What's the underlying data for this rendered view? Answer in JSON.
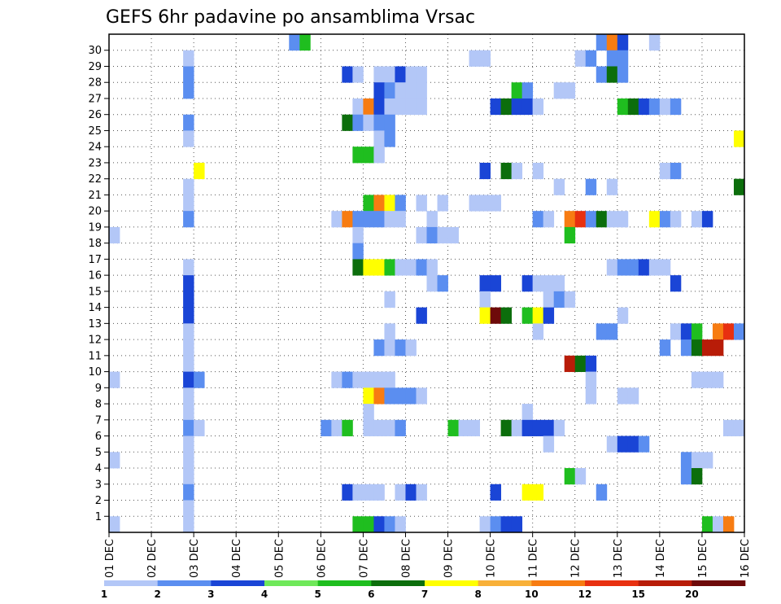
{
  "chart_data": {
    "type": "heatmap",
    "title": "GEFS 6hr padavine po ansamblima Vrsac",
    "xlabel": "",
    "ylabel": "",
    "x_ticks": [
      "01 DEC",
      "02 DEC",
      "03 DEC",
      "04 DEC",
      "05 DEC",
      "06 DEC",
      "07 DEC",
      "08 DEC",
      "09 DEC",
      "10 DEC",
      "11 DEC",
      "12 DEC",
      "13 DEC",
      "14 DEC",
      "15 DEC",
      "16 DEC"
    ],
    "y_ticks": [
      1,
      2,
      3,
      4,
      5,
      6,
      7,
      8,
      9,
      10,
      11,
      12,
      13,
      14,
      15,
      16,
      17,
      18,
      19,
      20,
      21,
      22,
      23,
      24,
      25,
      26,
      27,
      28,
      29,
      30
    ],
    "xlim": [
      0,
      60
    ],
    "ylim": [
      0,
      30
    ],
    "x_unit": "6-hour steps from 01 DEC 00Z",
    "y_unit": "ensemble member",
    "grid": true,
    "legend_position": "bottom",
    "legend": {
      "labels": [
        "1",
        "2",
        "3",
        "4",
        "5",
        "6",
        "7",
        "8",
        "10",
        "12",
        "15",
        "20"
      ],
      "colors": [
        "#b3c7f7",
        "#5b8ef0",
        "#1a45d6",
        "#6fe85a",
        "#1fbe1f",
        "#0c6e0c",
        "#ffff00",
        "#f8b038",
        "#f77c12",
        "#e83010",
        "#b81c08",
        "#6e0a0a"
      ]
    },
    "cells": [
      {
        "x": 17,
        "y": 30,
        "v": 2
      },
      {
        "x": 18,
        "y": 30,
        "v": 5
      },
      {
        "x": 46,
        "y": 30,
        "v": 2
      },
      {
        "x": 47,
        "y": 30,
        "v": 10
      },
      {
        "x": 48,
        "y": 30,
        "v": 3
      },
      {
        "x": 51,
        "y": 30,
        "v": 1
      },
      {
        "x": 7,
        "y": 29,
        "v": 1
      },
      {
        "x": 34,
        "y": 29,
        "v": 1
      },
      {
        "x": 35,
        "y": 29,
        "v": 1
      },
      {
        "x": 44,
        "y": 29,
        "v": 1
      },
      {
        "x": 45,
        "y": 29,
        "v": 2
      },
      {
        "x": 47,
        "y": 29,
        "v": 2
      },
      {
        "x": 48,
        "y": 29,
        "v": 2
      },
      {
        "x": 7,
        "y": 28,
        "v": 2
      },
      {
        "x": 22,
        "y": 28,
        "v": 3
      },
      {
        "x": 23,
        "y": 28,
        "v": 1
      },
      {
        "x": 25,
        "y": 28,
        "v": 1
      },
      {
        "x": 26,
        "y": 28,
        "v": 1
      },
      {
        "x": 27,
        "y": 28,
        "v": 3
      },
      {
        "x": 28,
        "y": 28,
        "v": 1
      },
      {
        "x": 29,
        "y": 28,
        "v": 1
      },
      {
        "x": 46,
        "y": 28,
        "v": 2
      },
      {
        "x": 47,
        "y": 28,
        "v": 6
      },
      {
        "x": 48,
        "y": 28,
        "v": 2
      },
      {
        "x": 7,
        "y": 27,
        "v": 2
      },
      {
        "x": 25,
        "y": 27,
        "v": 3
      },
      {
        "x": 26,
        "y": 27,
        "v": 2
      },
      {
        "x": 27,
        "y": 27,
        "v": 1
      },
      {
        "x": 28,
        "y": 27,
        "v": 1
      },
      {
        "x": 29,
        "y": 27,
        "v": 1
      },
      {
        "x": 38,
        "y": 27,
        "v": 5
      },
      {
        "x": 39,
        "y": 27,
        "v": 2
      },
      {
        "x": 42,
        "y": 27,
        "v": 1
      },
      {
        "x": 43,
        "y": 27,
        "v": 1
      },
      {
        "x": 23,
        "y": 26,
        "v": 1
      },
      {
        "x": 24,
        "y": 26,
        "v": 10
      },
      {
        "x": 25,
        "y": 26,
        "v": 3
      },
      {
        "x": 26,
        "y": 26,
        "v": 1
      },
      {
        "x": 27,
        "y": 26,
        "v": 1
      },
      {
        "x": 28,
        "y": 26,
        "v": 1
      },
      {
        "x": 29,
        "y": 26,
        "v": 1
      },
      {
        "x": 36,
        "y": 26,
        "v": 3
      },
      {
        "x": 37,
        "y": 26,
        "v": 6
      },
      {
        "x": 38,
        "y": 26,
        "v": 3
      },
      {
        "x": 39,
        "y": 26,
        "v": 3
      },
      {
        "x": 40,
        "y": 26,
        "v": 1
      },
      {
        "x": 48,
        "y": 26,
        "v": 5
      },
      {
        "x": 49,
        "y": 26,
        "v": 6
      },
      {
        "x": 50,
        "y": 26,
        "v": 3
      },
      {
        "x": 51,
        "y": 26,
        "v": 2
      },
      {
        "x": 52,
        "y": 26,
        "v": 1
      },
      {
        "x": 53,
        "y": 26,
        "v": 2
      },
      {
        "x": 7,
        "y": 25,
        "v": 2
      },
      {
        "x": 22,
        "y": 25,
        "v": 6
      },
      {
        "x": 23,
        "y": 25,
        "v": 2
      },
      {
        "x": 24,
        "y": 25,
        "v": 1
      },
      {
        "x": 25,
        "y": 25,
        "v": 2
      },
      {
        "x": 26,
        "y": 25,
        "v": 2
      },
      {
        "x": 7,
        "y": 24,
        "v": 1
      },
      {
        "x": 25,
        "y": 24,
        "v": 1
      },
      {
        "x": 26,
        "y": 24,
        "v": 2
      },
      {
        "x": 59,
        "y": 24,
        "v": 7
      },
      {
        "x": 23,
        "y": 23,
        "v": 5
      },
      {
        "x": 24,
        "y": 23,
        "v": 5
      },
      {
        "x": 25,
        "y": 23,
        "v": 1
      },
      {
        "x": 8,
        "y": 22,
        "v": 7
      },
      {
        "x": 35,
        "y": 22,
        "v": 3
      },
      {
        "x": 37,
        "y": 22,
        "v": 6
      },
      {
        "x": 38,
        "y": 22,
        "v": 1
      },
      {
        "x": 40,
        "y": 22,
        "v": 1
      },
      {
        "x": 52,
        "y": 22,
        "v": 1
      },
      {
        "x": 53,
        "y": 22,
        "v": 2
      },
      {
        "x": 7,
        "y": 21,
        "v": 1
      },
      {
        "x": 42,
        "y": 21,
        "v": 1
      },
      {
        "x": 45,
        "y": 21,
        "v": 2
      },
      {
        "x": 47,
        "y": 21,
        "v": 1
      },
      {
        "x": 59,
        "y": 21,
        "v": 6
      },
      {
        "x": 7,
        "y": 20,
        "v": 1
      },
      {
        "x": 24,
        "y": 20,
        "v": 5
      },
      {
        "x": 25,
        "y": 20,
        "v": 10
      },
      {
        "x": 26,
        "y": 20,
        "v": 7
      },
      {
        "x": 27,
        "y": 20,
        "v": 2
      },
      {
        "x": 29,
        "y": 20,
        "v": 1
      },
      {
        "x": 31,
        "y": 20,
        "v": 1
      },
      {
        "x": 34,
        "y": 20,
        "v": 1
      },
      {
        "x": 35,
        "y": 20,
        "v": 1
      },
      {
        "x": 36,
        "y": 20,
        "v": 1
      },
      {
        "x": 7,
        "y": 19,
        "v": 2
      },
      {
        "x": 21,
        "y": 19,
        "v": 1
      },
      {
        "x": 22,
        "y": 19,
        "v": 10
      },
      {
        "x": 23,
        "y": 19,
        "v": 2
      },
      {
        "x": 24,
        "y": 19,
        "v": 2
      },
      {
        "x": 25,
        "y": 19,
        "v": 2
      },
      {
        "x": 26,
        "y": 19,
        "v": 1
      },
      {
        "x": 27,
        "y": 19,
        "v": 1
      },
      {
        "x": 30,
        "y": 19,
        "v": 1
      },
      {
        "x": 40,
        "y": 19,
        "v": 2
      },
      {
        "x": 41,
        "y": 19,
        "v": 1
      },
      {
        "x": 43,
        "y": 19,
        "v": 10
      },
      {
        "x": 44,
        "y": 19,
        "v": 12
      },
      {
        "x": 45,
        "y": 19,
        "v": 2
      },
      {
        "x": 46,
        "y": 19,
        "v": 6
      },
      {
        "x": 47,
        "y": 19,
        "v": 1
      },
      {
        "x": 48,
        "y": 19,
        "v": 1
      },
      {
        "x": 51,
        "y": 19,
        "v": 7
      },
      {
        "x": 52,
        "y": 19,
        "v": 2
      },
      {
        "x": 53,
        "y": 19,
        "v": 1
      },
      {
        "x": 55,
        "y": 19,
        "v": 1
      },
      {
        "x": 56,
        "y": 19,
        "v": 3
      },
      {
        "x": 0,
        "y": 18,
        "v": 1
      },
      {
        "x": 23,
        "y": 18,
        "v": 1
      },
      {
        "x": 29,
        "y": 18,
        "v": 1
      },
      {
        "x": 30,
        "y": 18,
        "v": 2
      },
      {
        "x": 31,
        "y": 18,
        "v": 1
      },
      {
        "x": 32,
        "y": 18,
        "v": 1
      },
      {
        "x": 43,
        "y": 18,
        "v": 5
      },
      {
        "x": 23,
        "y": 17,
        "v": 2
      },
      {
        "x": 7,
        "y": 16,
        "v": 1
      },
      {
        "x": 23,
        "y": 16,
        "v": 6
      },
      {
        "x": 24,
        "y": 16,
        "v": 7
      },
      {
        "x": 25,
        "y": 16,
        "v": 7
      },
      {
        "x": 26,
        "y": 16,
        "v": 5
      },
      {
        "x": 27,
        "y": 16,
        "v": 1
      },
      {
        "x": 28,
        "y": 16,
        "v": 1
      },
      {
        "x": 29,
        "y": 16,
        "v": 2
      },
      {
        "x": 30,
        "y": 16,
        "v": 1
      },
      {
        "x": 47,
        "y": 16,
        "v": 1
      },
      {
        "x": 48,
        "y": 16,
        "v": 2
      },
      {
        "x": 49,
        "y": 16,
        "v": 2
      },
      {
        "x": 50,
        "y": 16,
        "v": 3
      },
      {
        "x": 51,
        "y": 16,
        "v": 1
      },
      {
        "x": 52,
        "y": 16,
        "v": 1
      },
      {
        "x": 7,
        "y": 15,
        "v": 3
      },
      {
        "x": 30,
        "y": 15,
        "v": 1
      },
      {
        "x": 31,
        "y": 15,
        "v": 2
      },
      {
        "x": 35,
        "y": 15,
        "v": 3
      },
      {
        "x": 36,
        "y": 15,
        "v": 3
      },
      {
        "x": 39,
        "y": 15,
        "v": 3
      },
      {
        "x": 40,
        "y": 15,
        "v": 1
      },
      {
        "x": 41,
        "y": 15,
        "v": 1
      },
      {
        "x": 42,
        "y": 15,
        "v": 1
      },
      {
        "x": 53,
        "y": 15,
        "v": 3
      },
      {
        "x": 7,
        "y": 14,
        "v": 3
      },
      {
        "x": 26,
        "y": 14,
        "v": 1
      },
      {
        "x": 35,
        "y": 14,
        "v": 1
      },
      {
        "x": 41,
        "y": 14,
        "v": 1
      },
      {
        "x": 42,
        "y": 14,
        "v": 2
      },
      {
        "x": 43,
        "y": 14,
        "v": 1
      },
      {
        "x": 7,
        "y": 13,
        "v": 3
      },
      {
        "x": 29,
        "y": 13,
        "v": 3
      },
      {
        "x": 35,
        "y": 13,
        "v": 7
      },
      {
        "x": 36,
        "y": 13,
        "v": 20
      },
      {
        "x": 37,
        "y": 13,
        "v": 6
      },
      {
        "x": 39,
        "y": 13,
        "v": 5
      },
      {
        "x": 40,
        "y": 13,
        "v": 7
      },
      {
        "x": 41,
        "y": 13,
        "v": 3
      },
      {
        "x": 48,
        "y": 13,
        "v": 1
      },
      {
        "x": 7,
        "y": 12,
        "v": 1
      },
      {
        "x": 26,
        "y": 12,
        "v": 1
      },
      {
        "x": 40,
        "y": 12,
        "v": 1
      },
      {
        "x": 46,
        "y": 12,
        "v": 2
      },
      {
        "x": 47,
        "y": 12,
        "v": 2
      },
      {
        "x": 53,
        "y": 12,
        "v": 1
      },
      {
        "x": 54,
        "y": 12,
        "v": 3
      },
      {
        "x": 55,
        "y": 12,
        "v": 5
      },
      {
        "x": 57,
        "y": 12,
        "v": 10
      },
      {
        "x": 58,
        "y": 12,
        "v": 12
      },
      {
        "x": 59,
        "y": 12,
        "v": 2
      },
      {
        "x": 7,
        "y": 11,
        "v": 1
      },
      {
        "x": 25,
        "y": 11,
        "v": 2
      },
      {
        "x": 26,
        "y": 11,
        "v": 1
      },
      {
        "x": 27,
        "y": 11,
        "v": 2
      },
      {
        "x": 28,
        "y": 11,
        "v": 1
      },
      {
        "x": 52,
        "y": 11,
        "v": 2
      },
      {
        "x": 54,
        "y": 11,
        "v": 2
      },
      {
        "x": 55,
        "y": 11,
        "v": 6
      },
      {
        "x": 56,
        "y": 11,
        "v": 15
      },
      {
        "x": 57,
        "y": 11,
        "v": 15
      },
      {
        "x": 7,
        "y": 10,
        "v": 1
      },
      {
        "x": 43,
        "y": 10,
        "v": 15
      },
      {
        "x": 44,
        "y": 10,
        "v": 6
      },
      {
        "x": 45,
        "y": 10,
        "v": 3
      },
      {
        "x": 0,
        "y": 9,
        "v": 1
      },
      {
        "x": 7,
        "y": 9,
        "v": 3
      },
      {
        "x": 8,
        "y": 9,
        "v": 2
      },
      {
        "x": 21,
        "y": 9,
        "v": 1
      },
      {
        "x": 22,
        "y": 9,
        "v": 2
      },
      {
        "x": 23,
        "y": 9,
        "v": 1
      },
      {
        "x": 24,
        "y": 9,
        "v": 1
      },
      {
        "x": 25,
        "y": 9,
        "v": 1
      },
      {
        "x": 26,
        "y": 9,
        "v": 1
      },
      {
        "x": 45,
        "y": 9,
        "v": 1
      },
      {
        "x": 55,
        "y": 9,
        "v": 1
      },
      {
        "x": 56,
        "y": 9,
        "v": 1
      },
      {
        "x": 57,
        "y": 9,
        "v": 1
      },
      {
        "x": 7,
        "y": 8,
        "v": 1
      },
      {
        "x": 24,
        "y": 8,
        "v": 7
      },
      {
        "x": 25,
        "y": 8,
        "v": 10
      },
      {
        "x": 26,
        "y": 8,
        "v": 2
      },
      {
        "x": 27,
        "y": 8,
        "v": 2
      },
      {
        "x": 28,
        "y": 8,
        "v": 2
      },
      {
        "x": 29,
        "y": 8,
        "v": 1
      },
      {
        "x": 45,
        "y": 8,
        "v": 1
      },
      {
        "x": 48,
        "y": 8,
        "v": 1
      },
      {
        "x": 49,
        "y": 8,
        "v": 1
      },
      {
        "x": 7,
        "y": 7,
        "v": 1
      },
      {
        "x": 24,
        "y": 7,
        "v": 1
      },
      {
        "x": 39,
        "y": 7,
        "v": 1
      },
      {
        "x": 7,
        "y": 6,
        "v": 2
      },
      {
        "x": 8,
        "y": 6,
        "v": 1
      },
      {
        "x": 20,
        "y": 6,
        "v": 2
      },
      {
        "x": 21,
        "y": 6,
        "v": 1
      },
      {
        "x": 22,
        "y": 6,
        "v": 5
      },
      {
        "x": 24,
        "y": 6,
        "v": 1
      },
      {
        "x": 25,
        "y": 6,
        "v": 1
      },
      {
        "x": 26,
        "y": 6,
        "v": 1
      },
      {
        "x": 27,
        "y": 6,
        "v": 2
      },
      {
        "x": 32,
        "y": 6,
        "v": 5
      },
      {
        "x": 33,
        "y": 6,
        "v": 1
      },
      {
        "x": 34,
        "y": 6,
        "v": 1
      },
      {
        "x": 37,
        "y": 6,
        "v": 6
      },
      {
        "x": 38,
        "y": 6,
        "v": 1
      },
      {
        "x": 39,
        "y": 6,
        "v": 3
      },
      {
        "x": 40,
        "y": 6,
        "v": 3
      },
      {
        "x": 41,
        "y": 6,
        "v": 3
      },
      {
        "x": 42,
        "y": 6,
        "v": 1
      },
      {
        "x": 58,
        "y": 6,
        "v": 1
      },
      {
        "x": 59,
        "y": 6,
        "v": 1
      },
      {
        "x": 7,
        "y": 5,
        "v": 1
      },
      {
        "x": 41,
        "y": 5,
        "v": 1
      },
      {
        "x": 47,
        "y": 5,
        "v": 1
      },
      {
        "x": 48,
        "y": 5,
        "v": 3
      },
      {
        "x": 49,
        "y": 5,
        "v": 3
      },
      {
        "x": 50,
        "y": 5,
        "v": 2
      },
      {
        "x": 0,
        "y": 4,
        "v": 1
      },
      {
        "x": 7,
        "y": 4,
        "v": 1
      },
      {
        "x": 54,
        "y": 4,
        "v": 2
      },
      {
        "x": 55,
        "y": 4,
        "v": 1
      },
      {
        "x": 56,
        "y": 4,
        "v": 1
      },
      {
        "x": 7,
        "y": 3,
        "v": 1
      },
      {
        "x": 43,
        "y": 3,
        "v": 5
      },
      {
        "x": 44,
        "y": 3,
        "v": 1
      },
      {
        "x": 54,
        "y": 3,
        "v": 2
      },
      {
        "x": 55,
        "y": 3,
        "v": 6
      },
      {
        "x": 7,
        "y": 2,
        "v": 2
      },
      {
        "x": 22,
        "y": 2,
        "v": 3
      },
      {
        "x": 23,
        "y": 2,
        "v": 1
      },
      {
        "x": 24,
        "y": 2,
        "v": 1
      },
      {
        "x": 25,
        "y": 2,
        "v": 1
      },
      {
        "x": 27,
        "y": 2,
        "v": 1
      },
      {
        "x": 28,
        "y": 2,
        "v": 3
      },
      {
        "x": 29,
        "y": 2,
        "v": 1
      },
      {
        "x": 36,
        "y": 2,
        "v": 3
      },
      {
        "x": 39,
        "y": 2,
        "v": 7
      },
      {
        "x": 40,
        "y": 2,
        "v": 7
      },
      {
        "x": 46,
        "y": 2,
        "v": 2
      },
      {
        "x": 7,
        "y": 1,
        "v": 1
      },
      {
        "x": 0,
        "y": 0,
        "v": 1
      },
      {
        "x": 7,
        "y": 0,
        "v": 1
      },
      {
        "x": 23,
        "y": 0,
        "v": 5
      },
      {
        "x": 24,
        "y": 0,
        "v": 5
      },
      {
        "x": 25,
        "y": 0,
        "v": 3
      },
      {
        "x": 26,
        "y": 0,
        "v": 2
      },
      {
        "x": 27,
        "y": 0,
        "v": 1
      },
      {
        "x": 35,
        "y": 0,
        "v": 1
      },
      {
        "x": 36,
        "y": 0,
        "v": 2
      },
      {
        "x": 37,
        "y": 0,
        "v": 3
      },
      {
        "x": 38,
        "y": 0,
        "v": 3
      },
      {
        "x": 56,
        "y": 0,
        "v": 5
      },
      {
        "x": 57,
        "y": 0,
        "v": 1
      },
      {
        "x": 58,
        "y": 0,
        "v": 10
      }
    ]
  }
}
